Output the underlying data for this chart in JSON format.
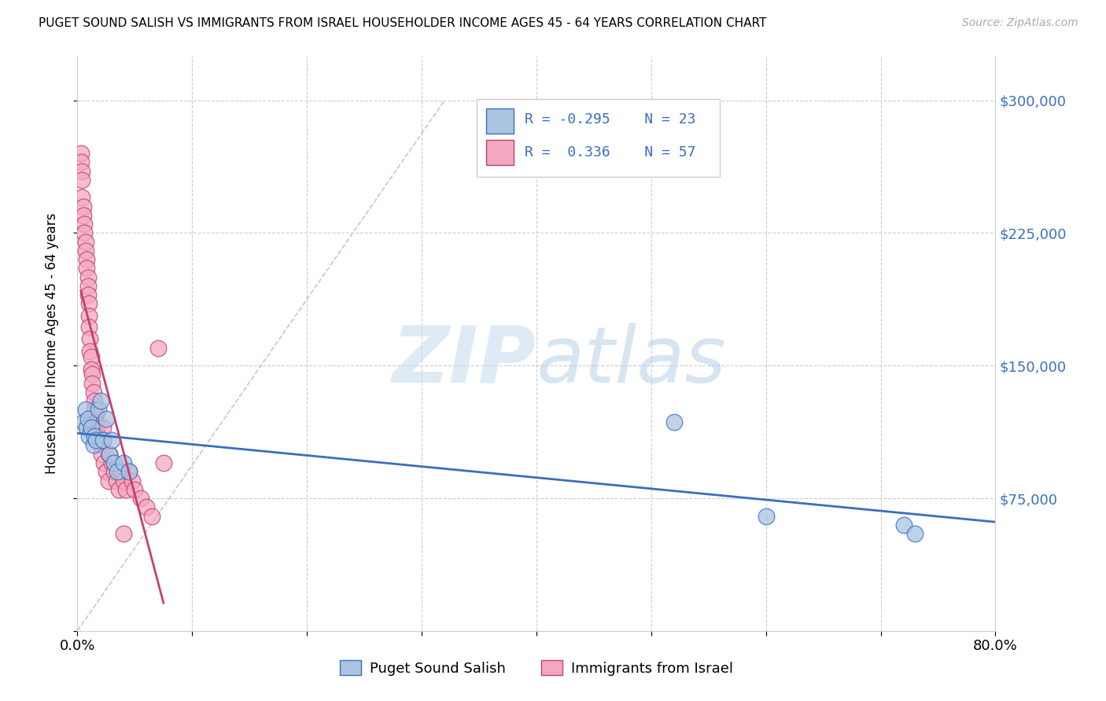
{
  "title": "PUGET SOUND SALISH VS IMMIGRANTS FROM ISRAEL HOUSEHOLDER INCOME AGES 45 - 64 YEARS CORRELATION CHART",
  "source": "Source: ZipAtlas.com",
  "ylabel": "Householder Income Ages 45 - 64 years",
  "xlim": [
    0.0,
    0.8
  ],
  "ylim": [
    0,
    325000
  ],
  "blue_color": "#aac4e0",
  "pink_color": "#f4a8c0",
  "blue_line_color": "#3a6fbd",
  "pink_line_color": "#c44070",
  "ref_line_color": "#ddbbcc",
  "grid_color": "#cccccc",
  "legend_R1": "-0.295",
  "legend_N1": "23",
  "legend_R2": "0.336",
  "legend_N2": "57",
  "legend_label1": "Puget Sound Salish",
  "legend_label2": "Immigrants from Israel",
  "blue_x": [
    0.005,
    0.007,
    0.008,
    0.009,
    0.01,
    0.012,
    0.014,
    0.015,
    0.016,
    0.018,
    0.02,
    0.022,
    0.025,
    0.028,
    0.03,
    0.032,
    0.035,
    0.04,
    0.045,
    0.52,
    0.6,
    0.72,
    0.73
  ],
  "blue_y": [
    118000,
    125000,
    115000,
    120000,
    110000,
    115000,
    105000,
    110000,
    108000,
    125000,
    130000,
    108000,
    120000,
    100000,
    108000,
    95000,
    90000,
    95000,
    90000,
    118000,
    65000,
    60000,
    55000
  ],
  "pink_x": [
    0.003,
    0.003,
    0.004,
    0.004,
    0.004,
    0.005,
    0.005,
    0.006,
    0.006,
    0.007,
    0.007,
    0.008,
    0.008,
    0.009,
    0.009,
    0.009,
    0.01,
    0.01,
    0.01,
    0.011,
    0.011,
    0.012,
    0.012,
    0.013,
    0.013,
    0.014,
    0.015,
    0.015,
    0.016,
    0.016,
    0.017,
    0.018,
    0.019,
    0.02,
    0.021,
    0.022,
    0.022,
    0.023,
    0.025,
    0.027,
    0.028,
    0.03,
    0.032,
    0.034,
    0.036,
    0.038,
    0.04,
    0.042,
    0.045,
    0.048,
    0.05,
    0.055,
    0.06,
    0.065,
    0.07,
    0.075,
    0.04
  ],
  "pink_y": [
    270000,
    265000,
    260000,
    255000,
    245000,
    240000,
    235000,
    230000,
    225000,
    220000,
    215000,
    210000,
    205000,
    200000,
    195000,
    190000,
    185000,
    178000,
    172000,
    165000,
    158000,
    155000,
    148000,
    145000,
    140000,
    135000,
    130000,
    125000,
    122000,
    118000,
    115000,
    110000,
    108000,
    105000,
    100000,
    115000,
    108000,
    95000,
    90000,
    85000,
    100000,
    95000,
    90000,
    85000,
    80000,
    90000,
    85000,
    80000,
    90000,
    85000,
    80000,
    75000,
    70000,
    65000,
    160000,
    95000,
    55000
  ]
}
